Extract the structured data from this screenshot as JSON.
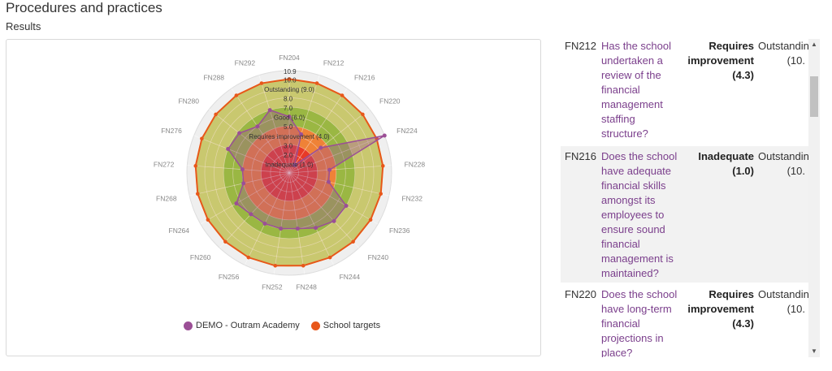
{
  "page": {
    "title": "Procedures and practices",
    "section": "Results"
  },
  "colors": {
    "demo_series": "#9b4f96",
    "target_series": "#e8571a",
    "question_link": "#7b3f8c"
  },
  "chart_data": {
    "type": "radar",
    "categories": [
      "FN204",
      "FN212",
      "FN216",
      "FN220",
      "FN224",
      "FN228",
      "FN232",
      "FN236",
      "FN240",
      "FN244",
      "FN248",
      "FN252",
      "FN256",
      "FN260",
      "FN264",
      "FN268",
      "FN272",
      "FN276",
      "FN280",
      "FN288",
      "FN292"
    ],
    "rlim": [
      0,
      10.9
    ],
    "radial_ticks": [
      "2.0",
      "3.0",
      "5.0",
      "7.0",
      "8.0",
      "10.0",
      "10.9"
    ],
    "bands": [
      {
        "label": "Inadequate (1.0)",
        "from": 0,
        "to": 3,
        "color": "#e8362a"
      },
      {
        "label": "Requires improvement (4.0)",
        "from": 3,
        "to": 5,
        "color": "#f08a3c"
      },
      {
        "label": "Good (6.0)",
        "from": 5,
        "to": 7,
        "color": "#8cc84b"
      },
      {
        "label": "Outstanding (9.0)",
        "from": 7,
        "to": 10,
        "color": "#c4dc7e"
      },
      {
        "label": "",
        "from": 10,
        "to": 10.9,
        "color": "#efefef"
      }
    ],
    "band_labels": [
      {
        "text": "Outstanding (9.0)",
        "r": 9.0
      },
      {
        "text": "Good (6.0)",
        "r": 6.0
      },
      {
        "text": "Requires improvement (4.0)",
        "r": 4.0
      },
      {
        "text": "Inadequate (1.0)",
        "r": 1.0
      }
    ],
    "series": [
      {
        "name": "DEMO - Outram Academy",
        "color": "#9b4f96",
        "values": [
          6.0,
          4.3,
          1.0,
          4.3,
          10.9,
          4.3,
          4.3,
          7.0,
          7.0,
          6.5,
          6.0,
          6.0,
          6.0,
          6.0,
          6.5,
          5.0,
          5.0,
          7.0,
          6.8,
          6.0,
          7.0
        ]
      },
      {
        "name": "School targets",
        "color": "#e8571a",
        "values": [
          10.0,
          10.0,
          10.0,
          10.0,
          10.0,
          10.0,
          10.0,
          10.0,
          10.0,
          10.0,
          10.0,
          10.0,
          10.0,
          10.0,
          10.0,
          10.0,
          10.0,
          10.0,
          10.0,
          10.0,
          10.0
        ]
      }
    ],
    "legend": "bottom"
  },
  "table": {
    "rows": [
      {
        "code": "FN212",
        "question": "Has the school undertaken a review of the financial management staffing structure?",
        "result": "Requires improvement (4.3)",
        "target": "Outstanding",
        "target_value": "(10."
      },
      {
        "code": "FN216",
        "question": "Does the school have adequate financial skills amongst its employees to ensure sound financial management is maintained?",
        "result": "Inadequate (1.0)",
        "target": "Outstanding",
        "target_value": "(10."
      },
      {
        "code": "FN220",
        "question": "Does the school have long-term financial projections in place?",
        "result": "Requires improvement (4.3)",
        "target": "Outstanding",
        "target_value": "(10."
      }
    ]
  },
  "scrollbar": {
    "up": "▲",
    "down": "▼"
  }
}
